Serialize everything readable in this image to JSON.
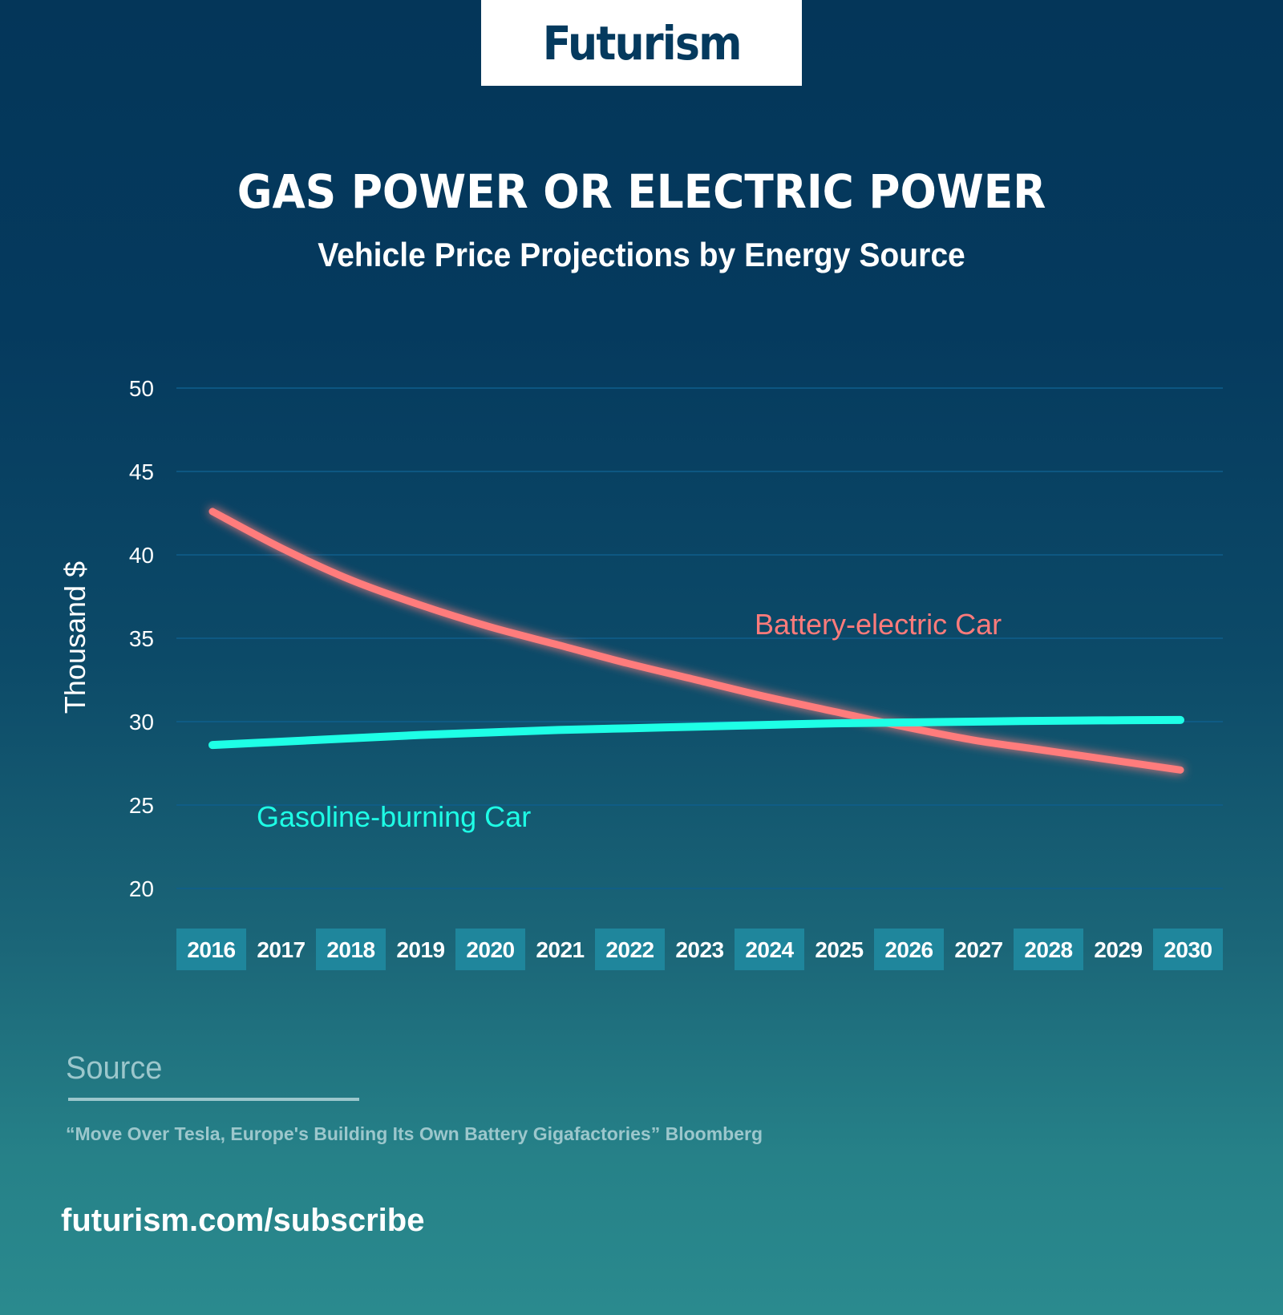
{
  "brand": {
    "logo": "Futurism"
  },
  "header": {
    "title": "GAS POWER OR ELECTRIC POWER",
    "subtitle": "Vehicle Price Projections by Energy Source"
  },
  "chart_data": {
    "type": "line",
    "title": "GAS POWER OR ELECTRIC POWER",
    "subtitle": "Vehicle Price Projections by Energy Source",
    "xlabel": "",
    "ylabel": "Thousand $",
    "x": [
      2016,
      2017,
      2018,
      2019,
      2020,
      2021,
      2022,
      2023,
      2024,
      2025,
      2026,
      2027,
      2028,
      2029,
      2030
    ],
    "x_tick_labels": [
      "2016",
      "2017",
      "2018",
      "2019",
      "2020",
      "2021",
      "2022",
      "2023",
      "2024",
      "2025",
      "2026",
      "2027",
      "2028",
      "2029",
      "2030"
    ],
    "ylim": [
      20,
      50
    ],
    "y_ticks": [
      20,
      25,
      30,
      35,
      40,
      45,
      50
    ],
    "y_tick_labels": [
      "20",
      "25",
      "30",
      "35",
      "40",
      "45",
      "50"
    ],
    "grid": true,
    "series": [
      {
        "name": "Battery-electric Car",
        "color": "#ff7b7b",
        "values": [
          42.6,
          40.4,
          38.5,
          37.0,
          35.7,
          34.6,
          33.5,
          32.5,
          31.5,
          30.6,
          29.7,
          28.9,
          28.3,
          27.7,
          27.1
        ]
      },
      {
        "name": "Gasoline-burning Car",
        "color": "#1effe6",
        "values": [
          28.6,
          28.8,
          29.0,
          29.2,
          29.35,
          29.5,
          29.6,
          29.7,
          29.8,
          29.9,
          29.95,
          30.0,
          30.05,
          30.08,
          30.1
        ]
      }
    ],
    "annotations": [
      {
        "text": "Battery-electric Car",
        "series": "Battery-electric Car",
        "near": "above line, right-center"
      },
      {
        "text": "Gasoline-burning Car",
        "series": "Gasoline-burning Car",
        "near": "below line, left"
      }
    ],
    "colors": {
      "grid": "#0f5f8c",
      "year_box": "#1f869c"
    }
  },
  "source": {
    "heading": "Source",
    "citation": "“Move Over Tesla, Europe's Building Its Own Battery Gigafactories” Bloomberg"
  },
  "footer": {
    "url": "futurism.com/subscribe"
  }
}
